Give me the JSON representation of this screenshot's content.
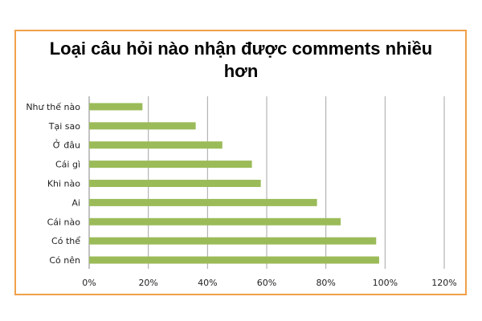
{
  "chart_data": {
    "type": "bar",
    "orientation": "horizontal",
    "title": "Loại câu hỏi nào nhận được comments nhiều hơn",
    "categories": [
      "Như thế nào",
      "Tại sao",
      "Ở đâu",
      "Cái gì",
      "Khi nào",
      "Ai",
      "Cái nào",
      "Có thể",
      "Có nên"
    ],
    "values": [
      18,
      36,
      45,
      55,
      58,
      77,
      85,
      97,
      98
    ],
    "value_unit": "%",
    "xlim": [
      0,
      120
    ],
    "x_ticks": [
      "0%",
      "20%",
      "40%",
      "60%",
      "80%",
      "100%",
      "120%"
    ],
    "grid": "vertical",
    "legend": "none",
    "bar_color": "#9bbb59",
    "frame_color": "#f0a04a"
  }
}
